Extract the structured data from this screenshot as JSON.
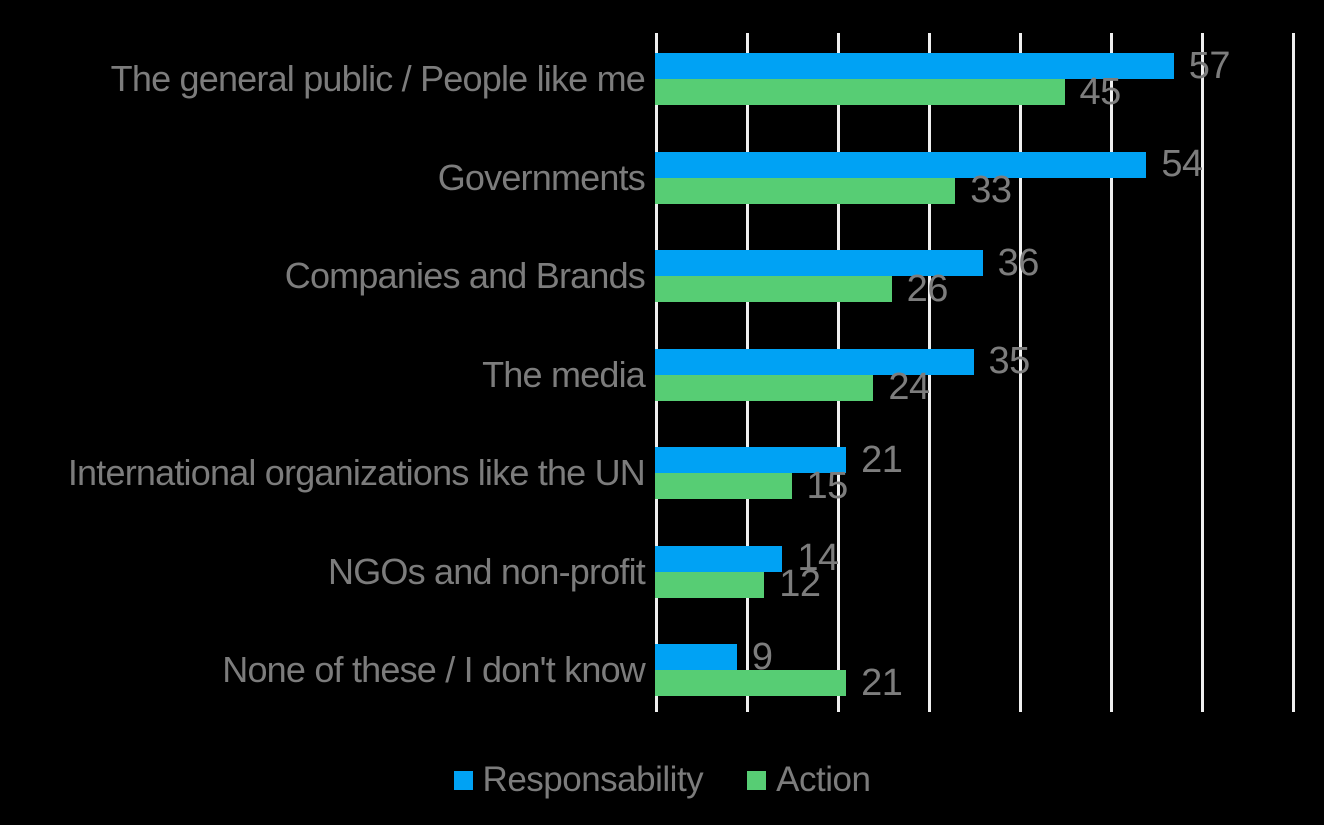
{
  "chart_data": {
    "type": "bar",
    "orientation": "horizontal",
    "title": "",
    "xlabel": "",
    "ylabel": "",
    "xlim": [
      0,
      70
    ],
    "xtick_interval": 10,
    "xtick_labels_visible": false,
    "grid": true,
    "value_labels_visible": true,
    "legend_position": "bottom",
    "categories": [
      "The general public / People like me",
      "Governments",
      "Companies and Brands",
      "The media",
      "International organizations like the UN",
      "NGOs and non-profit",
      "None of these / I don't know"
    ],
    "series": [
      {
        "name": "Responsability",
        "color": "#00A2F4",
        "values": [
          57,
          54,
          36,
          35,
          21,
          14,
          9
        ]
      },
      {
        "name": "Action",
        "color": "#57CD74",
        "values": [
          45,
          33,
          26,
          24,
          15,
          12,
          21
        ]
      }
    ]
  },
  "colors": {
    "background": "#000000",
    "gridline": "#EFEFEF",
    "label_text": "#7C7C7C"
  }
}
